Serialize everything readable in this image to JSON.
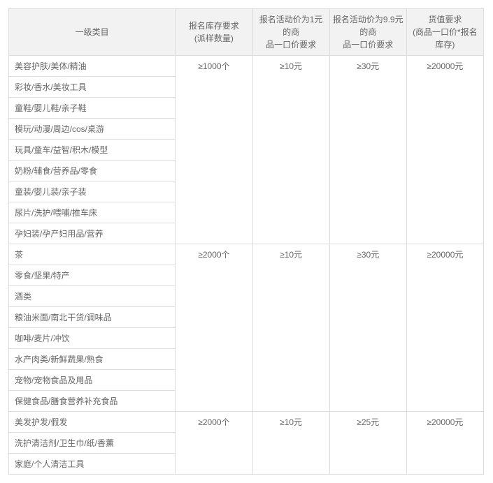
{
  "headers": {
    "col0_line1": "一级类目",
    "col1_line1": "报名库存要求",
    "col1_line2": "(派样数量)",
    "col2_line1": "报名活动价为1元的商",
    "col2_line2": "品一口价要求",
    "col3_line1": "报名活动价为9.9元的商",
    "col3_line2": "品一口价要求",
    "col4_line1": "货值要求",
    "col4_line2": "(商品一口价*报名库存)"
  },
  "groups": [
    {
      "stock": "≥1000个",
      "price1": "≥10元",
      "price99": "≥30元",
      "value": "≥20000元",
      "categories": [
        "美容护肤/美体/精油",
        "彩妆/香水/美妆工具",
        "童鞋/婴儿鞋/亲子鞋",
        "模玩/动漫/周边/cos/桌游",
        "玩具/童车/益智/积木/模型",
        "奶粉/辅食/营养品/零食",
        "童装/婴儿装/亲子装",
        "尿片/洗护/喂哺/推车床",
        "孕妇装/孕产妇用品/营养"
      ]
    },
    {
      "stock": "≥2000个",
      "price1": "≥10元",
      "price99": "≥30元",
      "value": "≥20000元",
      "categories": [
        "茶",
        "零食/坚果/特产",
        "酒类",
        "粮油米面/南北干货/调味品",
        "咖啡/麦片/冲饮",
        "水产肉类/新鲜蔬果/熟食",
        "宠物/宠物食品及用品",
        "保健食品/膳食营养补充食品"
      ]
    },
    {
      "stock": "≥2000个",
      "price1": "≥10元",
      "price99": "≥25元",
      "value": "≥20000元",
      "categories": [
        "美发护发/假发",
        "洗护清洁剂/卫生巾/纸/香薰",
        "家庭/个人清洁工具"
      ]
    }
  ]
}
